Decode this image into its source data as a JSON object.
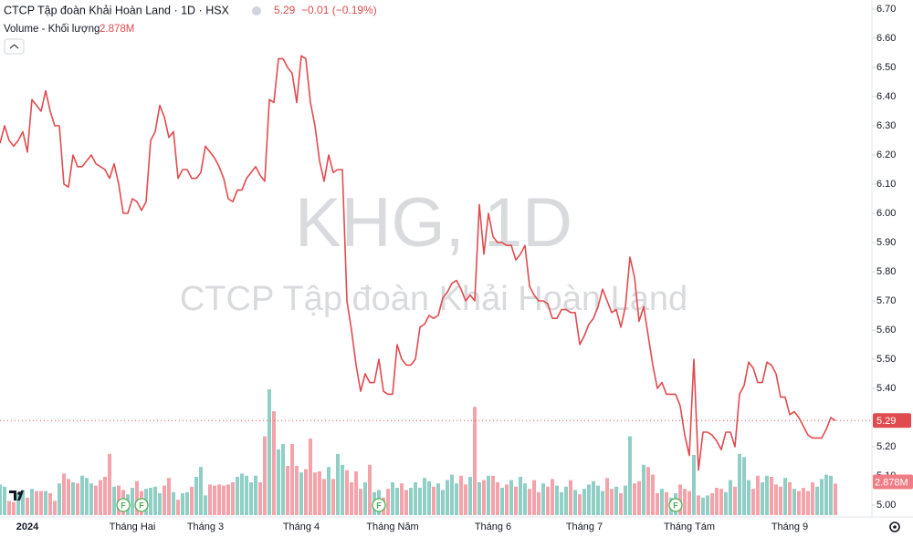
{
  "chart_data": {
    "type": "line",
    "title": "CTCP Tập đoàn Khải Hoàn Land · 1D · HSX",
    "change_label": "−0.01 (−0.19%)",
    "watermark_symbol": "KHG, 1D",
    "watermark_name": "CTCP Tập đoàn Khải Hoàn Land",
    "categories": [
      null,
      null,
      null,
      null,
      null,
      null,
      "2024",
      null,
      null,
      null,
      null,
      null,
      null,
      null,
      null,
      null,
      null,
      null,
      null,
      null,
      null,
      null,
      null,
      null,
      null,
      null,
      null,
      null,
      null,
      "Tháng Hai",
      null,
      null,
      null,
      null,
      null,
      null,
      null,
      null,
      null,
      null,
      null,
      null,
      null,
      null,
      null,
      "Tháng 3",
      null,
      null,
      null,
      null,
      null,
      null,
      null,
      null,
      null,
      null,
      null,
      null,
      null,
      null,
      null,
      null,
      null,
      null,
      null,
      null,
      "Tháng 4",
      null,
      null,
      null,
      null,
      null,
      null,
      null,
      null,
      null,
      null,
      null,
      null,
      null,
      null,
      null,
      null,
      null,
      null,
      null,
      "Tháng Năm",
      null,
      null,
      null,
      null,
      null,
      null,
      null,
      null,
      null,
      null,
      null,
      null,
      null,
      null,
      null,
      null,
      null,
      null,
      null,
      null,
      null,
      "Tháng 6",
      null,
      null,
      null,
      null,
      null,
      null,
      null,
      null,
      null,
      null,
      null,
      null,
      null,
      null,
      null,
      null,
      null,
      null,
      null,
      "Tháng 7",
      null,
      null,
      null,
      null,
      null,
      null,
      null,
      null,
      null,
      null,
      null,
      null,
      null,
      null,
      null,
      null,
      null,
      null,
      null,
      null,
      null,
      null,
      "Tháng Tám",
      null,
      null,
      null,
      null,
      null,
      null,
      null,
      null,
      null,
      null,
      null,
      null,
      null,
      null,
      null,
      null,
      null,
      null,
      null,
      null,
      null,
      "Tháng 9",
      null,
      null,
      null,
      null,
      null,
      null,
      null,
      null,
      null,
      null
    ],
    "series": [
      {
        "name": "KHG",
        "color": "#e04b4f",
        "values": [
          6.24,
          6.3,
          6.25,
          6.23,
          6.25,
          6.28,
          6.21,
          6.39,
          6.37,
          6.35,
          6.42,
          6.35,
          6.3,
          6.3,
          6.1,
          6.09,
          6.2,
          6.16,
          6.16,
          6.18,
          6.2,
          6.17,
          6.16,
          6.15,
          6.12,
          6.17,
          6.1,
          6.0,
          6.0,
          6.05,
          6.04,
          6.01,
          6.04,
          6.25,
          6.28,
          6.37,
          6.33,
          6.26,
          6.28,
          6.12,
          6.15,
          6.15,
          6.12,
          6.12,
          6.14,
          6.23,
          6.21,
          6.19,
          6.16,
          6.12,
          6.05,
          6.04,
          6.08,
          6.08,
          6.12,
          6.14,
          6.16,
          6.13,
          6.11,
          6.39,
          6.38,
          6.53,
          6.53,
          6.5,
          6.48,
          6.38,
          6.54,
          6.53,
          6.38,
          6.3,
          6.18,
          6.11,
          6.2,
          6.14,
          6.15,
          6.15,
          5.7,
          5.6,
          5.48,
          5.39,
          5.45,
          5.42,
          5.42,
          5.5,
          5.39,
          5.38,
          5.38,
          5.55,
          5.5,
          5.48,
          5.48,
          5.5,
          5.61,
          5.62,
          5.65,
          5.64,
          5.65,
          5.71,
          5.73,
          5.76,
          5.77,
          5.74,
          5.7,
          5.72,
          5.7,
          6.03,
          5.86,
          6.0,
          5.92,
          5.9,
          5.9,
          5.89,
          5.89,
          5.84,
          5.86,
          5.89,
          5.75,
          5.72,
          5.7,
          5.7,
          5.69,
          5.64,
          5.64,
          5.67,
          5.67,
          5.66,
          5.66,
          5.55,
          5.58,
          5.62,
          5.64,
          5.68,
          5.74,
          5.7,
          5.66,
          5.67,
          5.61,
          5.68,
          5.85,
          5.78,
          5.63,
          5.68,
          5.58,
          5.48,
          5.4,
          5.42,
          5.38,
          5.38,
          5.38,
          5.34,
          5.24,
          5.17,
          5.5,
          5.12,
          5.25,
          5.25,
          5.24,
          5.22,
          5.19,
          5.25,
          5.25,
          5.2,
          5.38,
          5.41,
          5.49,
          5.47,
          5.42,
          5.42,
          5.49,
          5.48,
          5.45,
          5.37,
          5.37,
          5.31,
          5.32,
          5.3,
          5.27,
          5.24,
          5.23,
          5.23,
          5.23,
          5.26,
          5.3,
          5.29
        ]
      }
    ],
    "volume": {
      "name": "Volume - Khối lượng",
      "last_value_label": "2.878M",
      "up_color": "#8fcfc6",
      "down_color": "#f5a3aa",
      "ylim": [
        0,
        12
      ],
      "values": [
        2.8,
        2.6,
        1.3,
        1.2,
        2.0,
        2.3,
        1.6,
        2.4,
        2.2,
        2.2,
        2.2,
        2.0,
        1.3,
        2.9,
        3.8,
        3.3,
        3.0,
        2.9,
        3.6,
        3.4,
        2.9,
        2.7,
        3.2,
        3.5,
        5.6,
        2.6,
        2.7,
        2.3,
        1.9,
        2.5,
        3.1,
        2.2,
        2.4,
        2.5,
        2.6,
        2.0,
        2.7,
        3.4,
        2.1,
        1.4,
        2.0,
        2.1,
        2.6,
        3.5,
        4.4,
        1.8,
        2.8,
        2.7,
        2.8,
        2.7,
        2.8,
        3.0,
        3.5,
        3.8,
        3.6,
        3.0,
        3.6,
        3.0,
        7.2,
        11.5,
        9.5,
        6.0,
        6.5,
        4.5,
        6.5,
        4.5,
        3.9,
        4.2,
        7.0,
        3.9,
        4.0,
        3.3,
        4.4,
        3.3,
        5.6,
        4.6,
        4.1,
        3.0,
        4.0,
        2.4,
        3.0,
        4.6,
        2.1,
        2.3,
        1.6,
        2.4,
        3.0,
        2.5,
        2.9,
        2.3,
        2.5,
        3.0,
        2.5,
        3.4,
        3.1,
        2.6,
        2.9,
        2.3,
        3.2,
        3.7,
        2.9,
        3.6,
        2.8,
        3.5,
        9.9,
        3.0,
        3.2,
        3.6,
        3.6,
        3.0,
        2.5,
        2.8,
        3.2,
        2.6,
        3.5,
        2.9,
        2.4,
        3.2,
        2.1,
        2.9,
        2.6,
        3.3,
        2.7,
        2.1,
        2.6,
        3.2,
        2.3,
        1.9,
        2.4,
        2.8,
        3.1,
        2.7,
        2.2,
        3.4,
        2.4,
        2.6,
        2.0,
        2.7,
        7.2,
        2.9,
        3.1,
        4.6,
        4.4,
        3.7,
        2.0,
        2.4,
        2.1,
        1.6,
        2.0,
        2.8,
        2.4,
        2.2,
        5.5,
        1.8,
        1.6,
        1.8,
        2.0,
        2.5,
        2.4,
        2.1,
        3.2,
        2.6,
        5.6,
        5.3,
        3.2,
        2.4,
        3.6,
        3.0,
        3.6,
        3.5,
        2.8,
        2.6,
        3.4,
        3.0,
        2.4,
        2.2,
        2.5,
        2.2,
        3.0,
        2.6,
        3.3,
        3.7,
        3.6,
        2.878
      ]
    },
    "event_markers": [
      {
        "index": 27,
        "label": "F"
      },
      {
        "index": 31,
        "label": "F"
      },
      {
        "index": 83,
        "label": "F"
      },
      {
        "index": 148,
        "label": "F"
      }
    ],
    "ylim": [
      5.0,
      6.7
    ],
    "yticks": [
      {
        "value": 5.0,
        "label": "5.00"
      },
      {
        "value": 5.1,
        "label": "5.10"
      },
      {
        "value": 5.2,
        "label": "5.20"
      },
      {
        "value": 5.3,
        "label": "5.30"
      },
      {
        "value": 5.4,
        "label": "5.40"
      },
      {
        "value": 5.5,
        "label": "5.50"
      },
      {
        "value": 5.6,
        "label": "5.60"
      },
      {
        "value": 5.7,
        "label": "5.70"
      },
      {
        "value": 5.8,
        "label": "5.80"
      },
      {
        "value": 5.9,
        "label": "5.90"
      },
      {
        "value": 6.0,
        "label": "6.00"
      },
      {
        "value": 6.1,
        "label": "6.10"
      },
      {
        "value": 6.2,
        "label": "6.20"
      },
      {
        "value": 6.3,
        "label": "6.30"
      },
      {
        "value": 6.4,
        "label": "6.40"
      },
      {
        "value": 6.5,
        "label": "6.50"
      },
      {
        "value": 6.6,
        "label": "6.60"
      },
      {
        "value": 6.7,
        "label": "6.70"
      }
    ]
  }
}
